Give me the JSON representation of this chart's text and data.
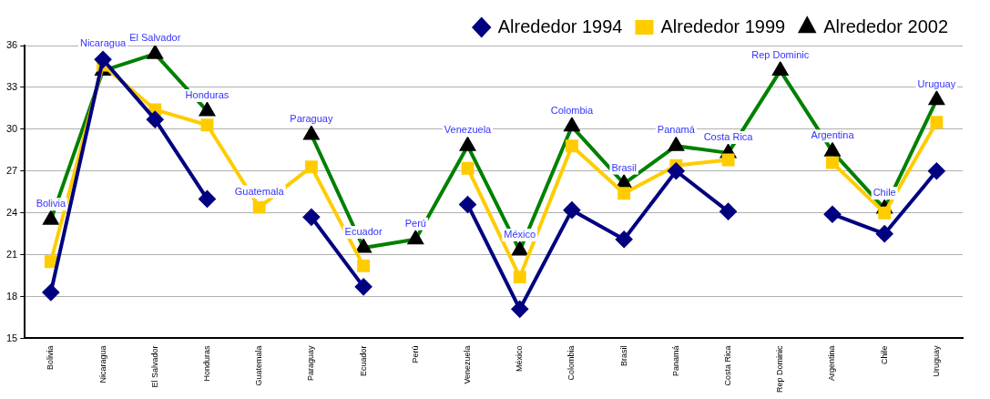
{
  "chart_data": {
    "type": "line",
    "categories": [
      "Bolivia",
      "Nicaragua",
      "El Salvador",
      "Honduras",
      "Guatemala",
      "Paraguay",
      "Ecuador",
      "Perú",
      "Venezuela",
      "México",
      "Colombia",
      "Brasil",
      "Panamá",
      "Costa Rica",
      "Rep Dominic",
      "Argentina",
      "Chile",
      "Uruguay"
    ],
    "series": [
      {
        "name": "Alrededor 1994",
        "color": "#000080",
        "marker": "diamond",
        "values": [
          18.3,
          35.0,
          30.7,
          25.0,
          null,
          23.7,
          18.7,
          null,
          24.6,
          17.1,
          24.2,
          22.1,
          27.0,
          24.1,
          null,
          23.9,
          22.5,
          27.0
        ]
      },
      {
        "name": "Alrededor 1999",
        "color": "#ffcc00",
        "marker": "square",
        "values": [
          20.5,
          34.6,
          31.4,
          30.3,
          24.4,
          27.3,
          20.2,
          null,
          27.2,
          19.4,
          28.8,
          25.4,
          27.4,
          27.8,
          null,
          27.6,
          24.0,
          30.5
        ]
      },
      {
        "name": "Alrededor 2002",
        "color": "#008000",
        "marker": "triangle",
        "values": [
          23.5,
          34.2,
          35.4,
          31.3,
          null,
          29.6,
          21.5,
          22.1,
          28.8,
          21.3,
          30.2,
          26.1,
          28.8,
          28.3,
          34.2,
          28.4,
          24.3,
          32.1
        ]
      }
    ],
    "ylim": [
      15,
      36
    ],
    "yticks": [
      15,
      18,
      21,
      24,
      27,
      30,
      33,
      36
    ],
    "grid": "y",
    "legend": "top right",
    "line_style": "solid",
    "annotations": [
      {
        "text": "Bolivia",
        "x": "Bolivia",
        "y": 23.5
      },
      {
        "text": "Nicaragua",
        "x": "Nicaragua",
        "y": 35.0
      },
      {
        "text": "El Salvador",
        "x": "El Salvador",
        "y": 35.4
      },
      {
        "text": "Honduras",
        "x": "Honduras",
        "y": 31.3
      },
      {
        "text": "Guatemala",
        "x": "Guatemala",
        "y": 24.4
      },
      {
        "text": "Paraguay",
        "x": "Paraguay",
        "y": 29.6
      },
      {
        "text": "Ecuador",
        "x": "Ecuador",
        "y": 21.5
      },
      {
        "text": "Perú",
        "x": "Perú",
        "y": 22.1
      },
      {
        "text": "Venezuela",
        "x": "Venezuela",
        "y": 28.8
      },
      {
        "text": "México",
        "x": "México",
        "y": 21.3
      },
      {
        "text": "Colombia",
        "x": "Colombia",
        "y": 30.2
      },
      {
        "text": "Brasil",
        "x": "Brasil",
        "y": 26.1
      },
      {
        "text": "Panamá",
        "x": "Panamá",
        "y": 28.8
      },
      {
        "text": "Costa Rica",
        "x": "Costa Rica",
        "y": 28.3
      },
      {
        "text": "Rep Dominic",
        "x": "Rep Dominic",
        "y": 34.2
      },
      {
        "text": "Argentina",
        "x": "Argentina",
        "y": 28.4
      },
      {
        "text": "Chile",
        "x": "Chile",
        "y": 24.3
      },
      {
        "text": "Uruguay",
        "x": "Uruguay",
        "y": 32.1
      }
    ]
  }
}
